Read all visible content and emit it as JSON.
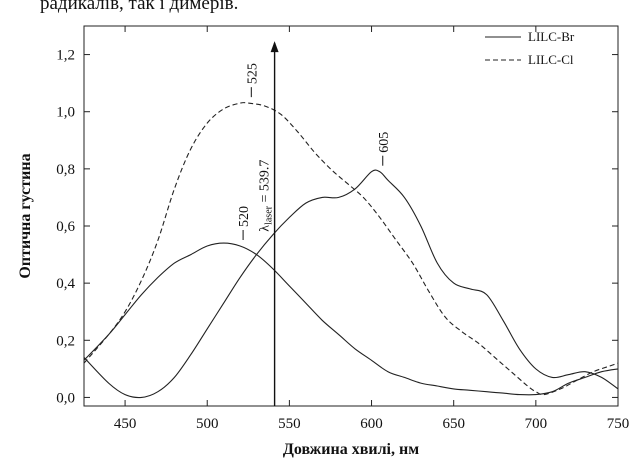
{
  "caption_text": "радикалів, так і димерів.",
  "chart_data": {
    "type": "line",
    "xlabel": "Довжина хвилі, нм",
    "ylabel": "Оптична густина",
    "xlim": [
      425,
      750
    ],
    "ylim": [
      -0.03,
      1.3
    ],
    "x_ticks": [
      450,
      500,
      550,
      600,
      650,
      700,
      750
    ],
    "x_tick_labels": [
      "450",
      "500",
      "550",
      "600",
      "650",
      "700",
      "750"
    ],
    "y_ticks": [
      0.0,
      0.2,
      0.4,
      0.6,
      0.8,
      1.0,
      1.2
    ],
    "y_tick_labels": [
      "0,0",
      "0,2",
      "0,4",
      "0,6",
      "0,8",
      "1,0",
      "1,2"
    ],
    "grid": false,
    "legend_position": "top-right",
    "series": [
      {
        "name": "LILC-Br",
        "style": "solid",
        "points": [
          [
            425,
            0.14
          ],
          [
            440,
            0.05
          ],
          [
            450,
            0.01
          ],
          [
            460,
            0.0
          ],
          [
            470,
            0.02
          ],
          [
            480,
            0.07
          ],
          [
            490,
            0.15
          ],
          [
            500,
            0.24
          ],
          [
            510,
            0.33
          ],
          [
            520,
            0.42
          ],
          [
            530,
            0.5
          ],
          [
            540,
            0.57
          ],
          [
            550,
            0.63
          ],
          [
            560,
            0.68
          ],
          [
            570,
            0.7
          ],
          [
            580,
            0.7
          ],
          [
            590,
            0.73
          ],
          [
            600,
            0.79
          ],
          [
            605,
            0.79
          ],
          [
            610,
            0.76
          ],
          [
            620,
            0.7
          ],
          [
            630,
            0.6
          ],
          [
            640,
            0.47
          ],
          [
            650,
            0.4
          ],
          [
            660,
            0.38
          ],
          [
            670,
            0.36
          ],
          [
            680,
            0.27
          ],
          [
            690,
            0.17
          ],
          [
            700,
            0.1
          ],
          [
            710,
            0.07
          ],
          [
            720,
            0.08
          ],
          [
            730,
            0.09
          ],
          [
            740,
            0.07
          ],
          [
            750,
            0.03
          ]
        ]
      },
      {
        "name": "LILC-Cl",
        "style": "dashed",
        "points": [
          [
            425,
            0.12
          ],
          [
            440,
            0.22
          ],
          [
            450,
            0.3
          ],
          [
            460,
            0.41
          ],
          [
            470,
            0.55
          ],
          [
            480,
            0.73
          ],
          [
            490,
            0.87
          ],
          [
            500,
            0.96
          ],
          [
            510,
            1.01
          ],
          [
            520,
            1.03
          ],
          [
            525,
            1.03
          ],
          [
            535,
            1.02
          ],
          [
            545,
            0.99
          ],
          [
            555,
            0.93
          ],
          [
            565,
            0.86
          ],
          [
            575,
            0.8
          ],
          [
            585,
            0.75
          ],
          [
            595,
            0.7
          ],
          [
            605,
            0.63
          ],
          [
            615,
            0.55
          ],
          [
            625,
            0.47
          ],
          [
            635,
            0.37
          ],
          [
            645,
            0.28
          ],
          [
            655,
            0.23
          ],
          [
            665,
            0.19
          ],
          [
            675,
            0.14
          ],
          [
            685,
            0.09
          ],
          [
            695,
            0.04
          ],
          [
            700,
            0.02
          ],
          [
            705,
            0.01
          ],
          [
            715,
            0.03
          ],
          [
            725,
            0.06
          ],
          [
            735,
            0.09
          ],
          [
            745,
            0.11
          ],
          [
            750,
            0.12
          ]
        ]
      },
      {
        "name": "",
        "style": "solid",
        "points": [
          [
            425,
            0.13
          ],
          [
            440,
            0.22
          ],
          [
            450,
            0.29
          ],
          [
            460,
            0.36
          ],
          [
            470,
            0.42
          ],
          [
            480,
            0.47
          ],
          [
            490,
            0.5
          ],
          [
            500,
            0.53
          ],
          [
            510,
            0.54
          ],
          [
            520,
            0.53
          ],
          [
            530,
            0.5
          ],
          [
            540,
            0.45
          ],
          [
            550,
            0.39
          ],
          [
            560,
            0.33
          ],
          [
            570,
            0.27
          ],
          [
            580,
            0.22
          ],
          [
            590,
            0.17
          ],
          [
            600,
            0.13
          ],
          [
            610,
            0.09
          ],
          [
            620,
            0.07
          ],
          [
            630,
            0.05
          ],
          [
            640,
            0.04
          ],
          [
            650,
            0.03
          ],
          [
            660,
            0.025
          ],
          [
            670,
            0.02
          ],
          [
            680,
            0.015
          ],
          [
            690,
            0.01
          ],
          [
            700,
            0.01
          ],
          [
            710,
            0.02
          ],
          [
            720,
            0.05
          ],
          [
            730,
            0.07
          ],
          [
            740,
            0.09
          ],
          [
            750,
            0.1
          ]
        ]
      }
    ],
    "annotations": [
      {
        "text": "525",
        "x": 525,
        "y": 1.03
      },
      {
        "text": "605",
        "x": 605,
        "y": 0.79
      },
      {
        "text": "520",
        "x": 520,
        "y": 0.53
      }
    ],
    "laser_marker": {
      "x": 541,
      "label_main": "λ",
      "label_sub": "laser",
      "label_rest": " = 539.7"
    }
  }
}
